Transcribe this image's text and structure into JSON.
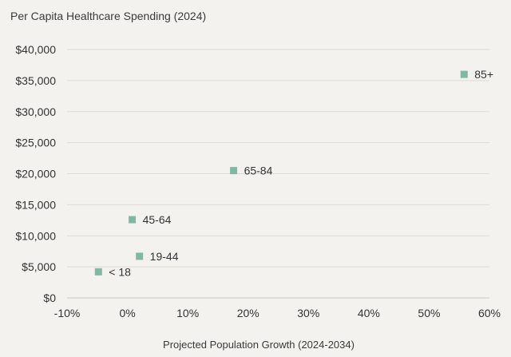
{
  "chart_data": {
    "type": "scatter",
    "title": "Per Capita Healthcare Spending (2024)",
    "xlabel": "Projected Population Growth (2024-2034)",
    "ylabel": "",
    "xlim": [
      -10,
      60
    ],
    "ylim": [
      0,
      40000
    ],
    "x_ticks": [
      -10,
      0,
      10,
      20,
      30,
      40,
      50,
      60
    ],
    "x_tick_labels": [
      "-10%",
      "0%",
      "10%",
      "20%",
      "30%",
      "40%",
      "50%",
      "60%"
    ],
    "y_ticks": [
      0,
      5000,
      10000,
      15000,
      20000,
      25000,
      30000,
      35000,
      40000
    ],
    "y_tick_labels": [
      "$0",
      "$5,000",
      "$10,000",
      "$15,000",
      "$20,000",
      "$25,000",
      "$30,000",
      "$35,000",
      "$40,000"
    ],
    "grid": "horizontal",
    "marker_color": "#7fb9a4",
    "points": [
      {
        "label": "< 18",
        "x": -4.8,
        "y": 4200
      },
      {
        "label": "19-44",
        "x": 2.0,
        "y": 6700
      },
      {
        "label": "45-64",
        "x": 0.8,
        "y": 12600
      },
      {
        "label": "65-84",
        "x": 17.6,
        "y": 20500
      },
      {
        "label": "85+",
        "x": 55.8,
        "y": 36000
      }
    ]
  }
}
